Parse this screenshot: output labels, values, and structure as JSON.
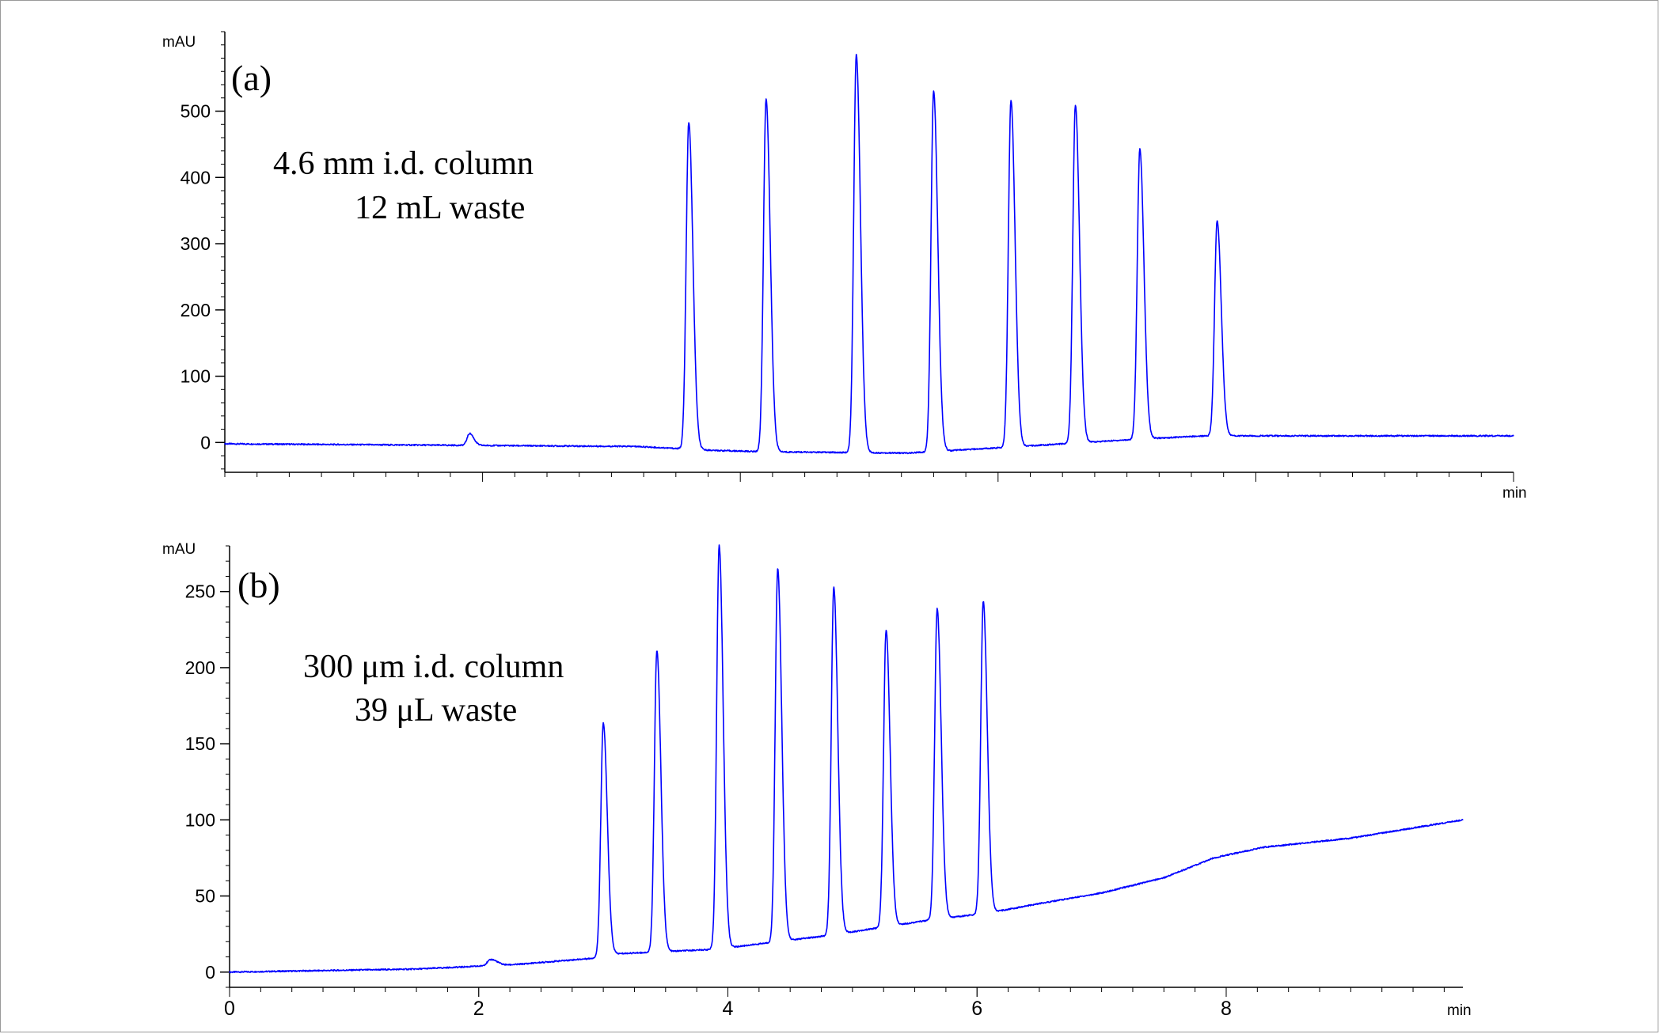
{
  "chart_data": [
    {
      "type": "line",
      "panel_label": "(a)",
      "y_unit": "mAU",
      "x_unit": "min",
      "annotation": [
        "4.6 mm i.d. column",
        "12 mL waste"
      ],
      "xlim": [
        0,
        10
      ],
      "ylim": [
        -45,
        620
      ],
      "yticks": [
        0,
        100,
        200,
        300,
        400,
        500
      ],
      "xticks": [],
      "x_tick_labels_shown": false,
      "grid": false,
      "color": "#0000ff",
      "baseline": [
        [
          0.0,
          -2
        ],
        [
          3.2,
          -6
        ],
        [
          3.8,
          -12
        ],
        [
          4.2,
          -14
        ],
        [
          5.3,
          -16
        ],
        [
          6.0,
          -8
        ],
        [
          6.5,
          -2
        ],
        [
          7.0,
          4
        ],
        [
          7.6,
          10
        ],
        [
          10.0,
          10
        ]
      ],
      "peaks": [
        {
          "x": 1.9,
          "height": 18,
          "width": 0.02
        },
        {
          "x": 3.6,
          "height": 493,
          "width": 0.02
        },
        {
          "x": 4.2,
          "height": 533,
          "width": 0.02
        },
        {
          "x": 4.9,
          "height": 600,
          "width": 0.02
        },
        {
          "x": 5.5,
          "height": 545,
          "width": 0.02
        },
        {
          "x": 6.1,
          "height": 523,
          "width": 0.02
        },
        {
          "x": 6.6,
          "height": 510,
          "width": 0.02
        },
        {
          "x": 7.1,
          "height": 438,
          "width": 0.02
        },
        {
          "x": 7.7,
          "height": 325,
          "width": 0.02
        }
      ]
    },
    {
      "type": "line",
      "panel_label": "(b)",
      "y_unit": "mAU",
      "x_unit": "min",
      "annotation": [
        "300 μm i.d. column",
        "39 μL waste"
      ],
      "xlim": [
        0,
        9.9
      ],
      "ylim": [
        -10,
        280
      ],
      "yticks": [
        0,
        50,
        100,
        150,
        200,
        250
      ],
      "xticks": [
        0,
        2,
        4,
        6,
        8
      ],
      "x_tick_labels_shown": true,
      "grid": false,
      "color": "#0000ff",
      "baseline": [
        [
          0.0,
          0
        ],
        [
          1.5,
          2
        ],
        [
          2.3,
          5
        ],
        [
          2.9,
          9
        ],
        [
          3.1,
          12
        ],
        [
          3.9,
          15
        ],
        [
          4.4,
          20
        ],
        [
          4.8,
          24
        ],
        [
          5.2,
          29
        ],
        [
          5.6,
          34
        ],
        [
          6.1,
          39
        ],
        [
          6.5,
          45
        ],
        [
          7.0,
          52
        ],
        [
          7.5,
          62
        ],
        [
          7.9,
          75
        ],
        [
          8.3,
          82
        ],
        [
          9.0,
          88
        ],
        [
          9.9,
          100
        ]
      ],
      "peaks": [
        {
          "x": 2.1,
          "height": 4,
          "width": 0.03
        },
        {
          "x": 3.0,
          "height": 153,
          "width": 0.02
        },
        {
          "x": 3.43,
          "height": 198,
          "width": 0.02
        },
        {
          "x": 3.93,
          "height": 265,
          "width": 0.02
        },
        {
          "x": 4.4,
          "height": 245,
          "width": 0.02
        },
        {
          "x": 4.85,
          "height": 228,
          "width": 0.02
        },
        {
          "x": 5.27,
          "height": 195,
          "width": 0.02
        },
        {
          "x": 5.68,
          "height": 204,
          "width": 0.02
        },
        {
          "x": 6.05,
          "height": 205,
          "width": 0.02
        }
      ]
    }
  ]
}
